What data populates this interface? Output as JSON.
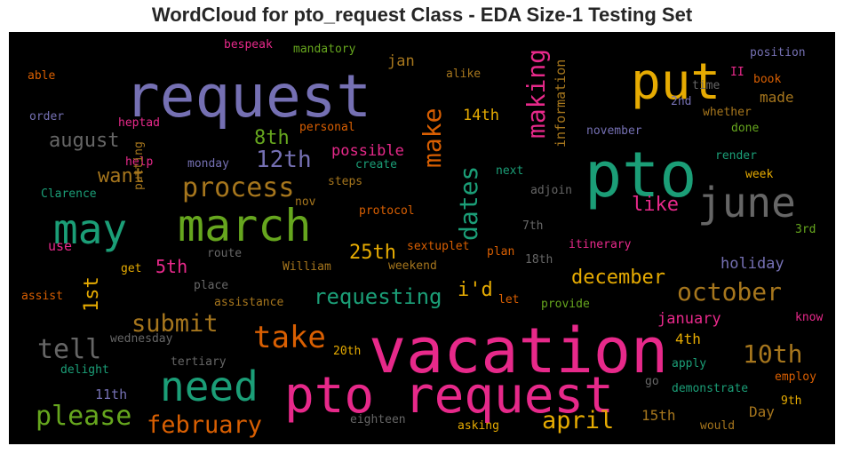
{
  "title": "WordCloud for pto_request Class - EDA Size-1 Testing Set",
  "palette": {
    "teal": "#1b9e77",
    "orange": "#d95f02",
    "purple": "#7570b3",
    "magenta": "#e7298a",
    "green": "#66a61e",
    "gold": "#e6ab02",
    "brown": "#a6761d",
    "gray": "#666666"
  },
  "words": [
    {
      "text": "request",
      "color": "purple"
    },
    {
      "text": "put",
      "color": "gold"
    },
    {
      "text": "pto",
      "color": "teal"
    },
    {
      "text": "vacation",
      "color": "magenta"
    },
    {
      "text": "pto request",
      "color": "magenta"
    },
    {
      "text": "march",
      "color": "green"
    },
    {
      "text": "may",
      "color": "teal"
    },
    {
      "text": "june",
      "color": "gray"
    },
    {
      "text": "need",
      "color": "teal"
    },
    {
      "text": "take",
      "color": "orange"
    },
    {
      "text": "process",
      "color": "brown"
    },
    {
      "text": "making",
      "color": "magenta"
    },
    {
      "text": "dates",
      "color": "teal"
    },
    {
      "text": "make",
      "color": "orange"
    },
    {
      "text": "please",
      "color": "green"
    },
    {
      "text": "february",
      "color": "orange"
    },
    {
      "text": "submit",
      "color": "brown"
    },
    {
      "text": "tell",
      "color": "gray"
    },
    {
      "text": "october",
      "color": "brown"
    },
    {
      "text": "10th",
      "color": "brown"
    },
    {
      "text": "april",
      "color": "gold"
    },
    {
      "text": "requesting",
      "color": "teal"
    },
    {
      "text": "12th",
      "color": "purple"
    },
    {
      "text": "8th",
      "color": "green"
    },
    {
      "text": "august",
      "color": "gray"
    },
    {
      "text": "want",
      "color": "brown"
    },
    {
      "text": "25th",
      "color": "gold"
    },
    {
      "text": "december",
      "color": "gold"
    },
    {
      "text": "i'd",
      "color": "gold"
    },
    {
      "text": "1st",
      "color": "gold"
    },
    {
      "text": "5th",
      "color": "magenta"
    },
    {
      "text": "like",
      "color": "magenta"
    },
    {
      "text": "holiday",
      "color": "purple"
    },
    {
      "text": "january",
      "color": "magenta"
    },
    {
      "text": "possible",
      "color": "magenta"
    },
    {
      "text": "information",
      "color": "brown"
    },
    {
      "text": "jan",
      "color": "brown"
    },
    {
      "text": "14th",
      "color": "gold"
    },
    {
      "text": "made",
      "color": "brown"
    },
    {
      "text": "4th",
      "color": "gold"
    },
    {
      "text": "15th",
      "color": "brown"
    },
    {
      "text": "11th",
      "color": "purple"
    },
    {
      "text": "Day",
      "color": "brown"
    },
    {
      "text": "bespeak",
      "color": "magenta"
    },
    {
      "text": "mandatory",
      "color": "green"
    },
    {
      "text": "alike",
      "color": "brown"
    },
    {
      "text": "able",
      "color": "orange"
    },
    {
      "text": "order",
      "color": "purple"
    },
    {
      "text": "heptad",
      "color": "magenta"
    },
    {
      "text": "personal",
      "color": "orange"
    },
    {
      "text": "position",
      "color": "purple"
    },
    {
      "text": "II",
      "color": "magenta"
    },
    {
      "text": "book",
      "color": "orange"
    },
    {
      "text": "time",
      "color": "gray"
    },
    {
      "text": "2nd",
      "color": "purple"
    },
    {
      "text": "whether",
      "color": "brown"
    },
    {
      "text": "done",
      "color": "green"
    },
    {
      "text": "november",
      "color": "purple"
    },
    {
      "text": "render",
      "color": "teal"
    },
    {
      "text": "week",
      "color": "gold"
    },
    {
      "text": "help",
      "color": "magenta"
    },
    {
      "text": "monday",
      "color": "purple"
    },
    {
      "text": "create",
      "color": "teal"
    },
    {
      "text": "next",
      "color": "teal"
    },
    {
      "text": "adjoin",
      "color": "gray"
    },
    {
      "text": "Clarence",
      "color": "teal"
    },
    {
      "text": "putting",
      "color": "brown"
    },
    {
      "text": "steps",
      "color": "brown"
    },
    {
      "text": "nov",
      "color": "brown"
    },
    {
      "text": "protocol",
      "color": "orange"
    },
    {
      "text": "7th",
      "color": "gray"
    },
    {
      "text": "3rd",
      "color": "green"
    },
    {
      "text": "itinerary",
      "color": "magenta"
    },
    {
      "text": "use",
      "color": "magenta"
    },
    {
      "text": "sextuplet",
      "color": "orange"
    },
    {
      "text": "plan",
      "color": "orange"
    },
    {
      "text": "route",
      "color": "gray"
    },
    {
      "text": "18th",
      "color": "gray"
    },
    {
      "text": "get",
      "color": "gold"
    },
    {
      "text": "William",
      "color": "brown"
    },
    {
      "text": "weekend",
      "color": "brown"
    },
    {
      "text": "place",
      "color": "gray"
    },
    {
      "text": "assist",
      "color": "orange"
    },
    {
      "text": "assistance",
      "color": "brown"
    },
    {
      "text": "let",
      "color": "orange"
    },
    {
      "text": "provide",
      "color": "green"
    },
    {
      "text": "know",
      "color": "magenta"
    },
    {
      "text": "wednesday",
      "color": "gray"
    },
    {
      "text": "20th",
      "color": "gold"
    },
    {
      "text": "tertiary",
      "color": "gray"
    },
    {
      "text": "delight",
      "color": "teal"
    },
    {
      "text": "apply",
      "color": "teal"
    },
    {
      "text": "employ",
      "color": "orange"
    },
    {
      "text": "go",
      "color": "gray"
    },
    {
      "text": "demonstrate",
      "color": "teal"
    },
    {
      "text": "9th",
      "color": "gold"
    },
    {
      "text": "eighteen",
      "color": "gray"
    },
    {
      "text": "asking",
      "color": "gold"
    },
    {
      "text": "would",
      "color": "brown"
    }
  ]
}
